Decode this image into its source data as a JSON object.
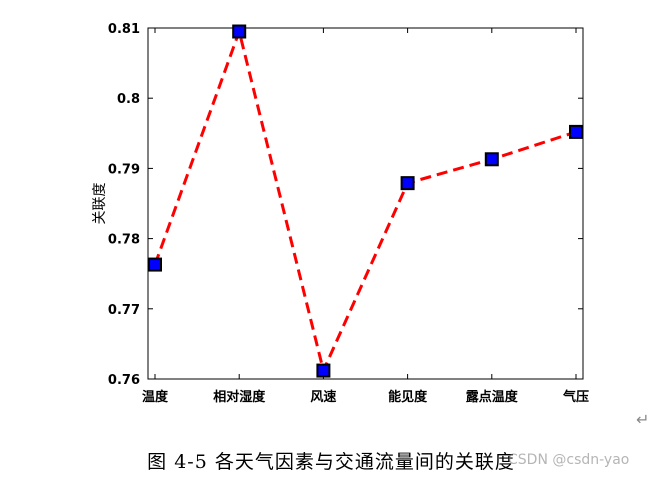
{
  "chart_data": {
    "type": "line",
    "categories": [
      "温度",
      "相对湿度",
      "风速",
      "能见度",
      "露点温度",
      "气压"
    ],
    "series": [
      {
        "values": [
          0.7763,
          0.8095,
          0.7612,
          0.7879,
          0.7913,
          0.7952
        ]
      }
    ],
    "xlabel": "",
    "ylabel": "关联度",
    "ylim": [
      0.76,
      0.81
    ],
    "yticks": [
      "0.76",
      "0.77",
      "0.78",
      "0.79",
      "0.8",
      "0.81"
    ],
    "grid": false,
    "line_color": "#ff0000",
    "line_style": "dashed",
    "marker": "square",
    "marker_color": "#0000ff",
    "marker_edge_color": "#000000"
  },
  "caption": "图 4-5  各天气因素与交通流量间的关联度",
  "watermark": "CSDN @csdn-yao",
  "return_mark": "↵"
}
